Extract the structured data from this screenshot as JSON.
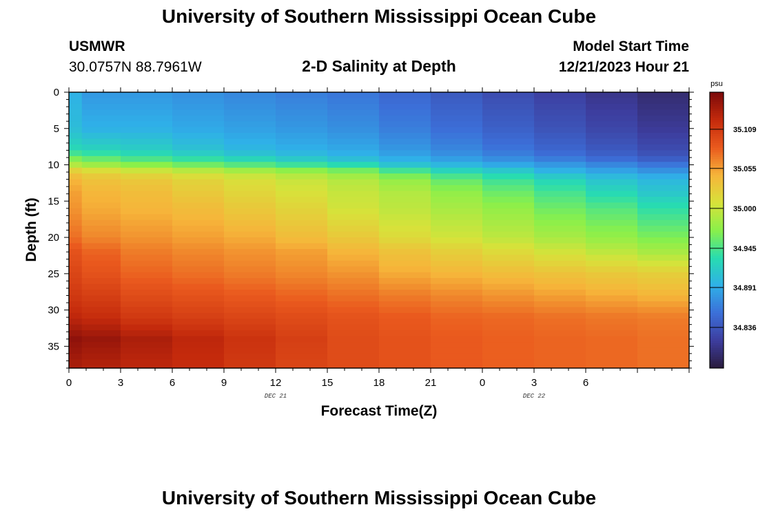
{
  "header": {
    "title": "University of Southern Mississippi Ocean Cube",
    "station": "USMWR",
    "coords": "30.0757N  88.7961W",
    "subtitle": "2-D Salinity at Depth",
    "start_label": "Model Start Time",
    "start_value": "12/21/2023 Hour 21"
  },
  "footer": {
    "title": "University of Southern Mississippi Ocean Cube"
  },
  "chart_data": {
    "type": "heatmap",
    "title": "2-D Salinity at Depth",
    "xlabel": "Forecast Time(Z)",
    "ylabel": "Depth (ft)",
    "x_ticks": [
      "0",
      "3",
      "6",
      "9",
      "12",
      "15",
      "18",
      "21",
      "0",
      "3",
      "6"
    ],
    "x_range_hours": [
      0,
      36
    ],
    "date_labels": [
      {
        "text": "DEC 21",
        "hour": 12
      },
      {
        "text": "DEC 22",
        "hour": 27
      }
    ],
    "y_ticks": [
      "0",
      "5",
      "10",
      "15",
      "20",
      "25",
      "30",
      "35"
    ],
    "y_range_ft": [
      0,
      38
    ],
    "colorbar": {
      "unit": "psu",
      "ticks": [
        "35.109",
        "35.055",
        "35.000",
        "34.945",
        "34.891",
        "34.836"
      ],
      "tick_values": [
        35.109,
        35.055,
        35.0,
        34.945,
        34.891,
        34.836
      ],
      "range": [
        34.78,
        35.16
      ],
      "stops": [
        "#2a1b3c",
        "#3d3d9e",
        "#3c6fd8",
        "#2fb0e8",
        "#28dcb0",
        "#8af04a",
        "#d7e23a",
        "#f6b53a",
        "#ea5a1e",
        "#c42a0c",
        "#7c0a0a"
      ]
    },
    "time_hours": [
      0,
      1.5,
      4.5,
      7.5,
      10.5,
      13.5,
      16.5,
      19.5,
      22.5,
      25.5,
      28.5,
      31.5,
      34.5
    ],
    "depth_ft": [
      0,
      5,
      8,
      9,
      10,
      11,
      12,
      14,
      16,
      20,
      22,
      25,
      28,
      31,
      34,
      38
    ],
    "salinity_psu": [
      [
        34.895,
        34.88,
        34.88,
        34.875,
        34.87,
        34.865,
        34.86,
        34.85,
        34.84,
        34.83,
        34.82,
        34.81,
        34.8
      ],
      [
        34.905,
        34.895,
        34.895,
        34.89,
        34.885,
        34.88,
        34.875,
        34.865,
        34.855,
        34.845,
        34.835,
        34.825,
        34.815
      ],
      [
        34.93,
        34.925,
        34.92,
        34.91,
        34.9,
        34.895,
        34.89,
        34.88,
        34.87,
        34.86,
        34.85,
        34.84,
        34.83
      ],
      [
        34.96,
        34.95,
        34.94,
        34.93,
        34.92,
        34.91,
        34.9,
        34.89,
        34.88,
        34.87,
        34.86,
        34.85,
        34.84
      ],
      [
        34.99,
        34.98,
        34.97,
        34.96,
        34.95,
        34.94,
        34.93,
        34.91,
        34.9,
        34.89,
        34.88,
        34.87,
        34.86
      ],
      [
        35.03,
        35.02,
        35.01,
        35.0,
        34.99,
        34.98,
        34.97,
        34.95,
        34.93,
        34.92,
        34.9,
        34.89,
        34.88
      ],
      [
        35.045,
        35.035,
        35.03,
        35.02,
        35.01,
        35.0,
        34.99,
        34.975,
        34.955,
        34.94,
        34.925,
        34.91,
        34.9
      ],
      [
        35.055,
        35.045,
        35.04,
        35.03,
        35.02,
        35.01,
        35.0,
        34.99,
        34.975,
        34.96,
        34.945,
        34.93,
        34.915
      ],
      [
        35.06,
        35.05,
        35.045,
        35.04,
        35.03,
        35.02,
        35.005,
        34.995,
        34.985,
        34.975,
        34.96,
        34.95,
        34.935
      ],
      [
        35.075,
        35.065,
        35.06,
        35.055,
        35.05,
        35.04,
        35.03,
        35.015,
        35.005,
        34.995,
        34.985,
        34.975,
        34.965
      ],
      [
        35.09,
        35.08,
        35.07,
        35.065,
        35.06,
        35.055,
        35.045,
        35.035,
        35.025,
        35.015,
        35.005,
        34.995,
        34.985
      ],
      [
        35.1,
        35.09,
        35.08,
        35.075,
        35.07,
        35.065,
        35.06,
        35.05,
        35.045,
        35.04,
        35.035,
        35.03,
        35.025
      ],
      [
        35.11,
        35.105,
        35.095,
        35.09,
        35.085,
        35.08,
        35.075,
        35.07,
        35.065,
        35.06,
        35.055,
        35.05,
        35.045
      ],
      [
        35.125,
        35.12,
        35.11,
        35.105,
        35.1,
        35.095,
        35.09,
        35.085,
        35.08,
        35.078,
        35.075,
        35.072,
        35.07
      ],
      [
        35.15,
        35.145,
        35.135,
        35.125,
        35.115,
        35.105,
        35.095,
        35.09,
        35.085,
        35.082,
        35.08,
        35.078,
        35.075
      ],
      [
        35.135,
        35.13,
        35.125,
        35.12,
        35.11,
        35.1,
        35.095,
        35.09,
        35.085,
        35.082,
        35.08,
        35.078,
        35.075
      ]
    ]
  }
}
